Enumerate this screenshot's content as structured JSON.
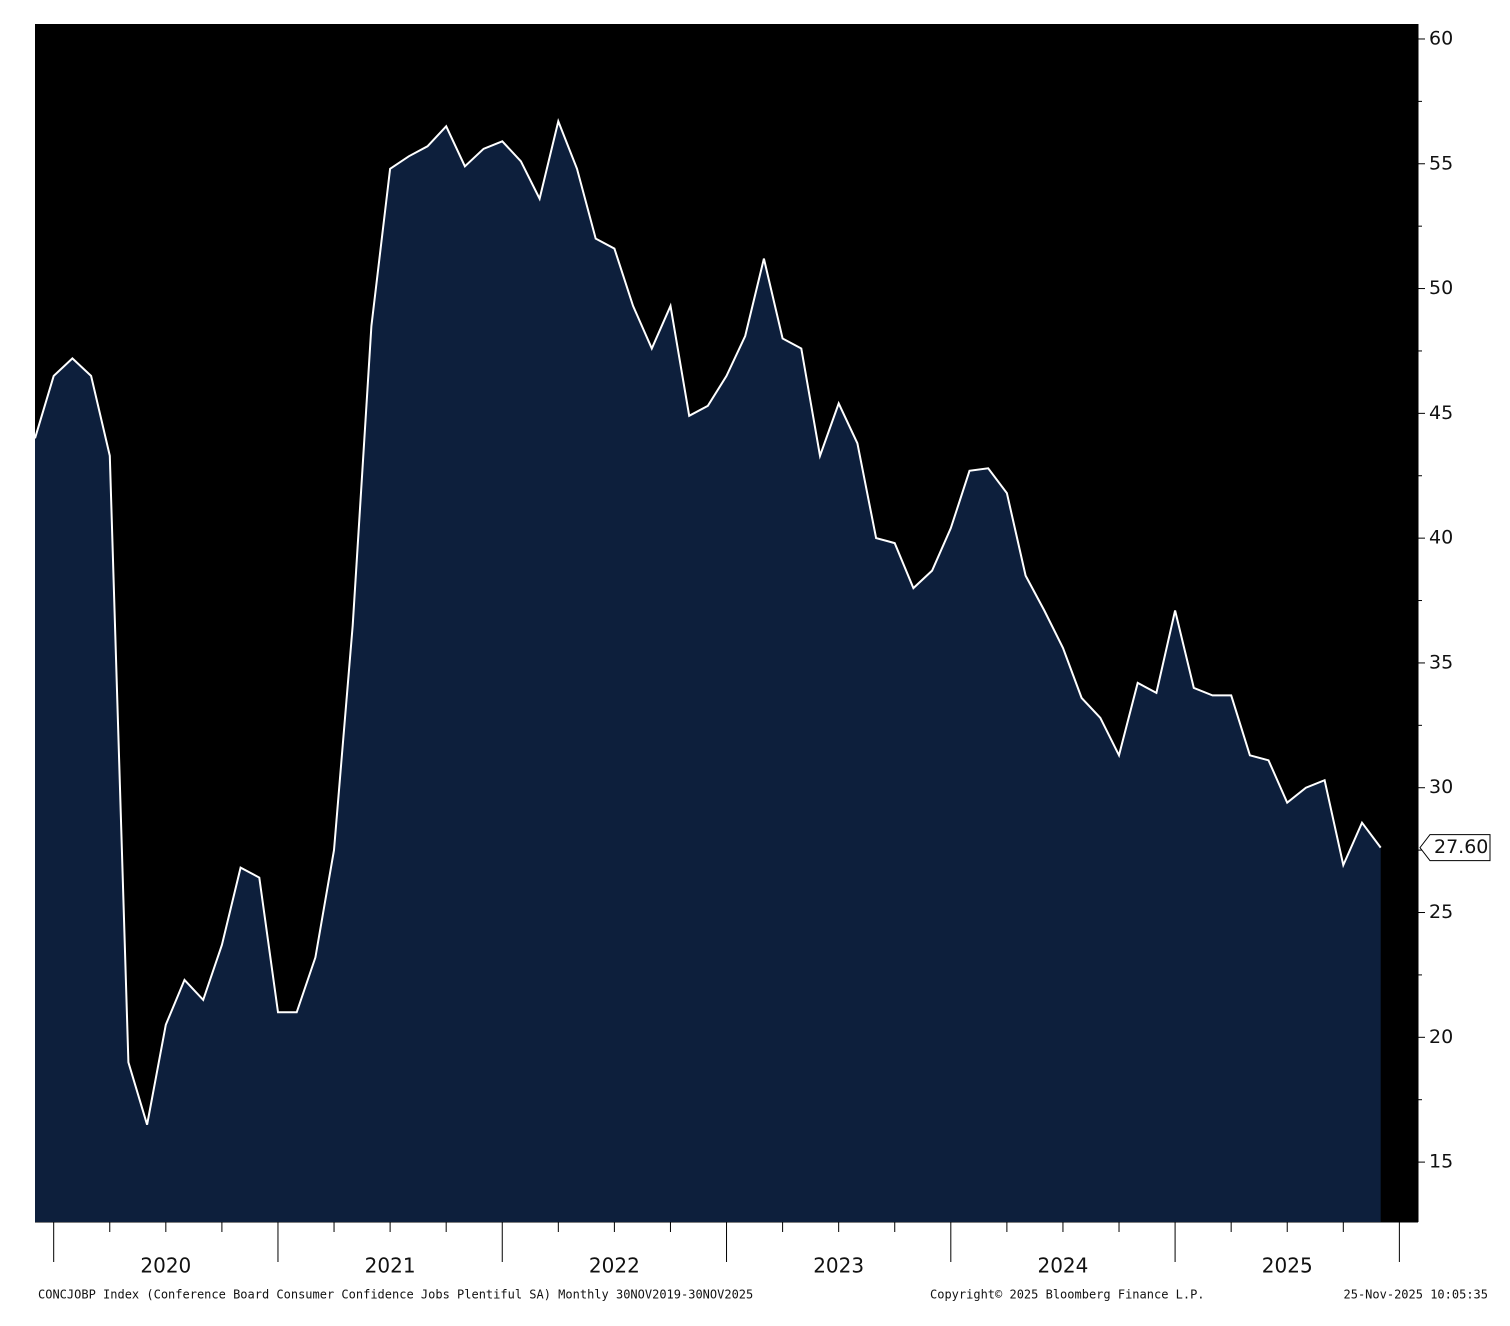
{
  "chart_data": {
    "type": "area",
    "x_axis_labels": [
      "2020",
      "2021",
      "2022",
      "2023",
      "2024",
      "2025"
    ],
    "series": [
      {
        "color": "#ffffff",
        "fill": "#0d1f3c",
        "values": [
          44,
          46.5,
          47.2,
          46.5,
          43.3,
          19,
          16.5,
          20.5,
          22.3,
          21.5,
          23.7,
          26.8,
          26.4,
          21,
          21,
          23.2,
          27.5,
          36.5,
          48.5,
          54.8,
          55.3,
          55.7,
          56.5,
          54.9,
          55.6,
          55.9,
          55.1,
          53.6,
          56.7,
          54.8,
          52,
          51.6,
          49.3,
          47.6,
          49.3,
          44.9,
          45.3,
          46.5,
          48.1,
          51.2,
          48,
          47.6,
          43.3,
          45.4,
          43.8,
          40,
          39.8,
          38,
          38.7,
          40.4,
          42.7,
          42.8,
          41.8,
          38.5,
          37.1,
          35.6,
          33.6,
          32.8,
          31.3,
          34.2,
          33.8,
          37.1,
          34,
          33.7,
          33.7,
          31.3,
          31.1,
          29.4,
          30,
          30.3,
          26.9,
          28.6,
          27.6
        ]
      }
    ],
    "last_value_label": "27.60",
    "ylim": [
      12.6,
      60.6
    ],
    "yticks": [
      15,
      20,
      25,
      30,
      35,
      40,
      45,
      50,
      55,
      60
    ],
    "yminor_ticks": [
      17.5,
      22.5,
      27.5,
      32.5,
      37.5,
      42.5,
      47.5,
      52.5,
      57.5
    ],
    "footer_left": "CONCJOBP Index (Conference Board Consumer Confidence Jobs Plentiful SA) Monthly 30NOV2019-30NOV2025",
    "footer_center": "Copyright© 2025 Bloomberg Finance L.P.",
    "footer_right": "25-Nov-2025 10:05:35"
  }
}
